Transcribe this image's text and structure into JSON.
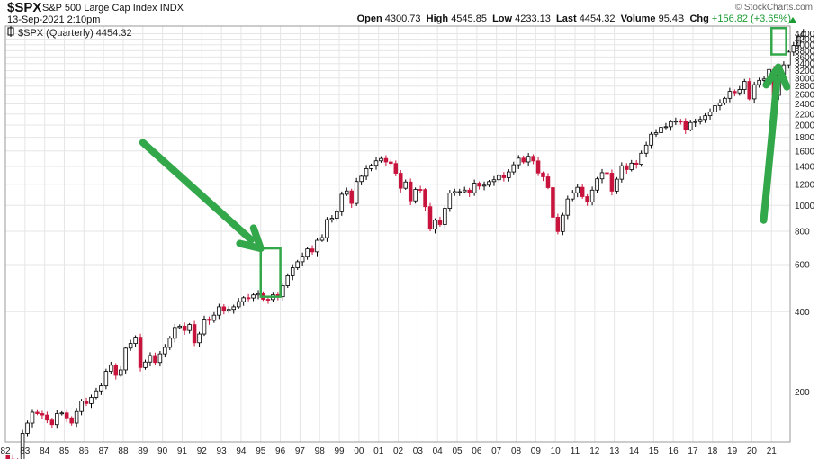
{
  "header": {
    "symbol": "$SPX",
    "name": "S&P 500 Large Cap Index",
    "exchange": "INDX",
    "date": "13-Sep-2021 2:10pm",
    "open_label": "Open",
    "open": "4300.73",
    "high_label": "High",
    "high": "4545.85",
    "low_label": "Low",
    "low": "4233.13",
    "last_label": "Last",
    "last": "4454.32",
    "volume_label": "Volume",
    "volume": "95.4B",
    "chg_label": "Chg",
    "chg": "+156.82 (+3.65%)",
    "watermark": "© StockCharts.com"
  },
  "legend": "$SPX (Quarterly) 4454.32",
  "colors": {
    "up": "#ffffff",
    "down": "#c8143c",
    "outline": "#000000",
    "highlight": "#33a84a",
    "grid": "#e6e6e6"
  },
  "chart_data": {
    "type": "candlestick",
    "period": "quarterly",
    "y_scale": "log",
    "ylim": [
      130,
      4700
    ],
    "xlim": [
      1982.0,
      2021.95
    ],
    "x_ticks": [
      "82",
      "83",
      "84",
      "85",
      "86",
      "87",
      "88",
      "89",
      "90",
      "91",
      "92",
      "93",
      "94",
      "95",
      "96",
      "97",
      "98",
      "99",
      "00",
      "01",
      "02",
      "03",
      "04",
      "05",
      "06",
      "07",
      "08",
      "09",
      "10",
      "11",
      "12",
      "13",
      "14",
      "15",
      "16",
      "17",
      "18",
      "19",
      "20",
      "21"
    ],
    "y_ticks": [
      200,
      400,
      600,
      800,
      1000,
      1200,
      1400,
      1600,
      1800,
      2000,
      2200,
      2400,
      2600,
      2800,
      3000,
      3200,
      3400,
      3600,
      3800,
      4000,
      4200,
      4400
    ],
    "y_ticks_labels": [
      "200",
      "400",
      "600",
      "800",
      "1000",
      "1200",
      "1400",
      "1600",
      "1800",
      "2000",
      "2200",
      "2400",
      "2600",
      "2800",
      "3000",
      "3200",
      "3400",
      "3600",
      "3800",
      "4000",
      "4200",
      "4400"
    ],
    "closes": [
      112,
      111,
      110,
      140,
      153,
      168,
      166,
      164,
      157,
      151,
      166,
      167,
      160,
      153,
      169,
      185,
      181,
      191,
      202,
      211,
      239,
      252,
      231,
      242,
      292,
      304,
      321,
      247,
      259,
      274,
      258,
      278,
      294,
      318,
      349,
      353,
      340,
      358,
      306,
      330,
      375,
      371,
      388,
      417,
      404,
      408,
      417,
      436,
      451,
      450,
      462,
      467,
      445,
      444,
      463,
      455,
      500,
      545,
      584,
      615,
      645,
      687,
      670,
      740,
      757,
      885,
      895,
      947,
      1101,
      1133,
      1017,
      1229,
      1286,
      1373,
      1413,
      1469,
      1499,
      1455,
      1436,
      1320,
      1160,
      1224,
      1040,
      1148,
      1147,
      989,
      815,
      880,
      848,
      975,
      1112,
      1126,
      1126,
      1141,
      1115,
      1212,
      1181,
      1191,
      1228,
      1248,
      1295,
      1270,
      1335,
      1420,
      1503,
      1455,
      1527,
      1468,
      1323,
      1280,
      1166,
      903,
      798,
      919,
      1057,
      1115,
      1169,
      1079,
      1031,
      1141,
      1258,
      1326,
      1321,
      1131,
      1254,
      1408,
      1362,
      1440,
      1426,
      1569,
      1682,
      1848,
      1872,
      1960,
      1972,
      2059,
      2068,
      2063,
      1920,
      2044,
      2060,
      2099,
      2168,
      2239,
      2363,
      2423,
      2519,
      2674,
      2641,
      2718,
      2914,
      2507,
      2834,
      2942,
      2977,
      3231,
      2585,
      3100,
      3363,
      3756,
      3973,
      4298,
      4454
    ],
    "opens_note": "Each candle opens at the previous close; high/low extend beyond body.",
    "highlights": [
      {
        "label": "1995 quarterly breakout box",
        "x_start": 1995.0,
        "x_end": 1996.0,
        "y_low": 455,
        "y_high": 690
      },
      {
        "label": "2021 quarterly breakout box",
        "x_start": 2021.0,
        "x_end": 2021.75,
        "y_low": 3680,
        "y_high": 4620
      }
    ],
    "annotations": [
      {
        "type": "arrow",
        "label": "green arrow pointing to 1995 box",
        "from": [
          1989.0,
          1720
        ],
        "to": [
          1995.0,
          690
        ]
      },
      {
        "type": "arrow",
        "label": "green arrow pointing to 2021 box",
        "from": [
          2020.6,
          880
        ],
        "to": [
          2021.35,
          3300
        ]
      }
    ]
  }
}
